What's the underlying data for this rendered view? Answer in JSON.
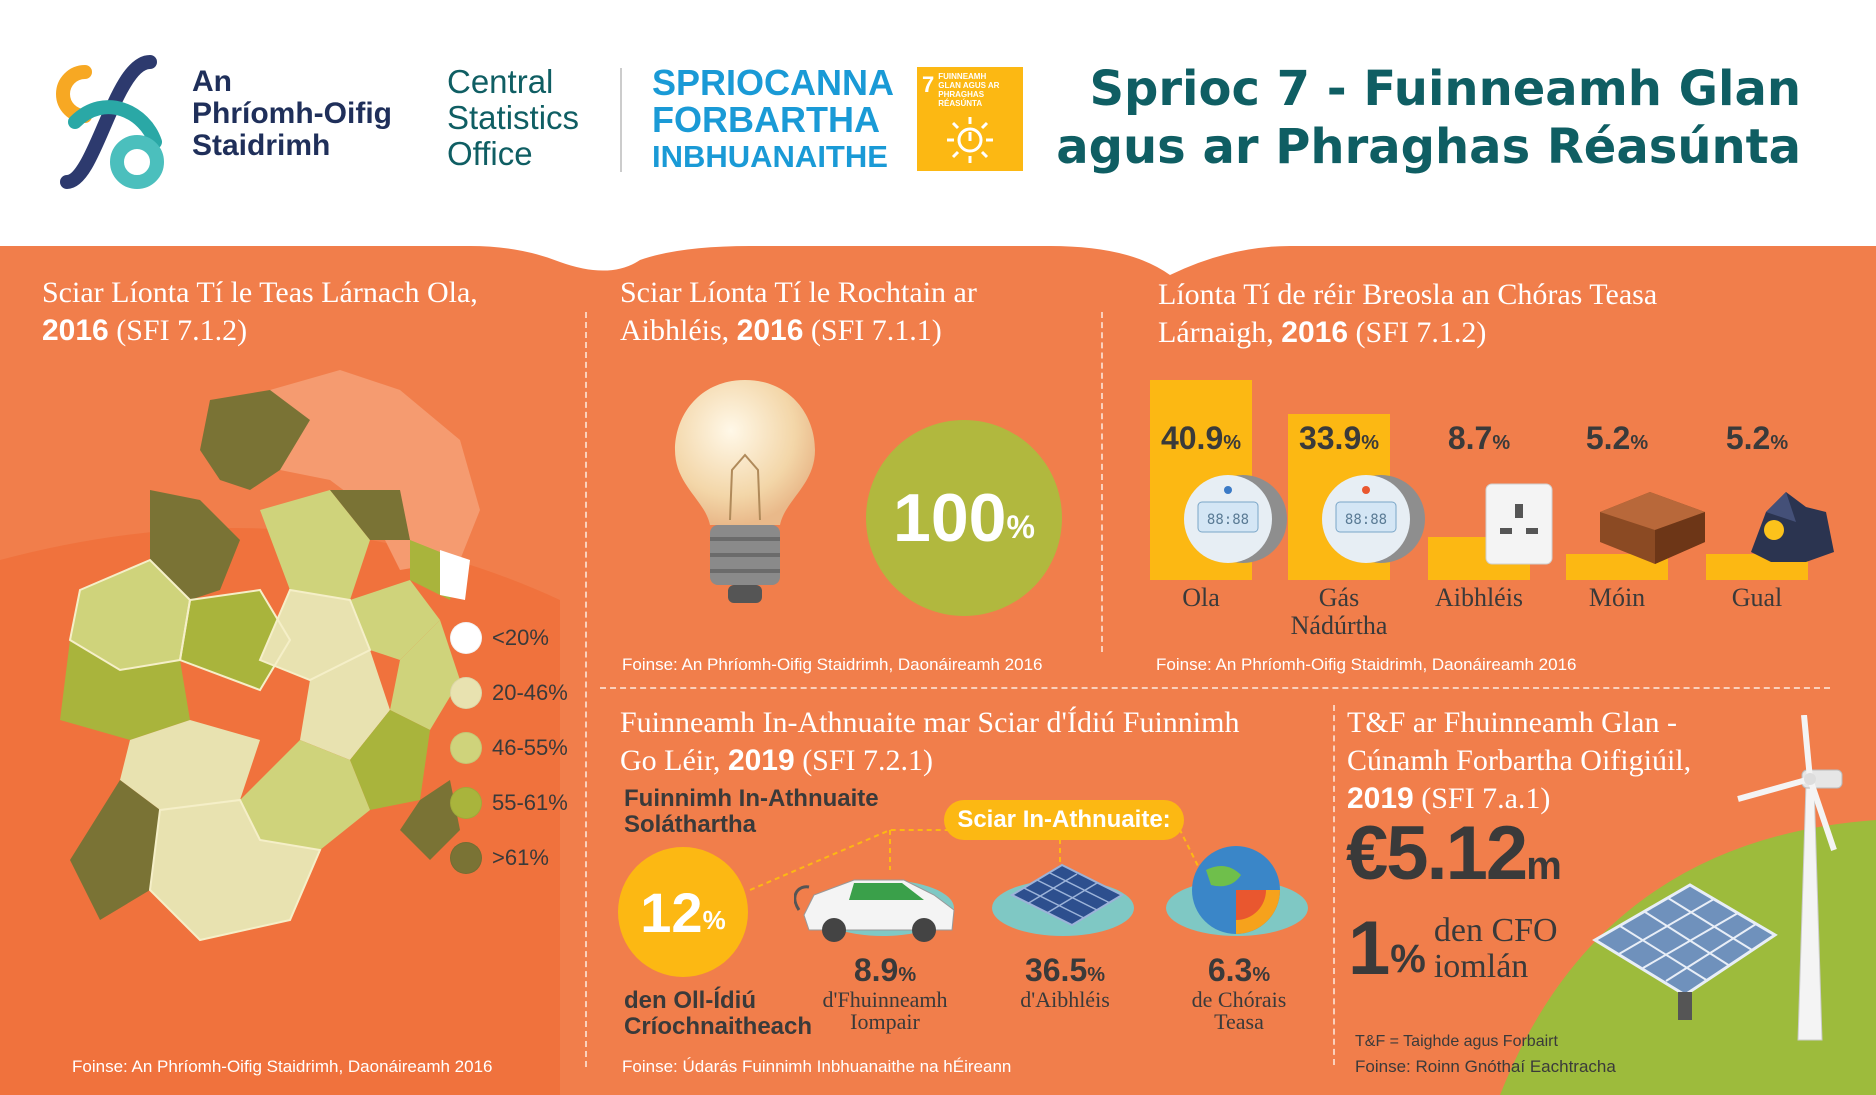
{
  "header": {
    "cso_irish": [
      "An",
      "Phríomh-Oifig",
      "Staidrimh"
    ],
    "cso_english": [
      "Central",
      "Statistics",
      "Office"
    ],
    "sdg_line1": "SPRIOCANNA",
    "sdg_line2": "FORBARTHA",
    "sdg_line3": "INBHUANAITHE",
    "goal_number": "7",
    "goal_text": "FUINNEAMH GLAN AGUS AR PHRAGHAS RÉASÚNTA",
    "title_line1": "Sprioc 7 - Fuinneamh Glan",
    "title_line2": "agus ar Phraghas Réasúnta"
  },
  "panel_map": {
    "title_pre": "Sciar Líonta Tí le Teas Lárnach Ola, ",
    "title_year": "2016",
    "title_post": "  (SFI 7.1.2)",
    "legend": [
      {
        "label": "<20%",
        "color": "#ffffff"
      },
      {
        "label": "20-46%",
        "color": "#e8e2b0"
      },
      {
        "label": "46-55%",
        "color": "#cfd37b"
      },
      {
        "label": "55-61%",
        "color": "#a9b43c"
      },
      {
        "label": ">61%",
        "color": "#7a7335"
      }
    ],
    "source": "Foinse: An Phríomh-Oifig Staidrimh, Daonáireamh 2016"
  },
  "panel_electricity": {
    "title_pre": "Sciar Líonta Tí le Rochtain ar Aibhléis, ",
    "title_year": "2016",
    "title_post": " (SFI 7.1.1)",
    "value": "100",
    "unit": "%",
    "source": "Foinse: An Phríomh-Oifig Staidrimh, Daonáireamh 2016"
  },
  "panel_fuel": {
    "title_pre": "Líonta Tí de réir Breosla an Chóras Teasa Lárnaigh, ",
    "title_year": "2016",
    "title_post": " (SFI 7.1.2)",
    "bars": [
      {
        "value": "40.9",
        "unit": "%",
        "label": "Ola",
        "share": 40.9
      },
      {
        "value": "33.9",
        "unit": "%",
        "label": "Gás Nádúrtha",
        "share": 33.9
      },
      {
        "value": "8.7",
        "unit": "%",
        "label": "Aibhléis",
        "share": 8.7
      },
      {
        "value": "5.2",
        "unit": "%",
        "label": "Móin",
        "share": 5.2
      },
      {
        "value": "5.2",
        "unit": "%",
        "label": "Gual",
        "share": 5.2
      }
    ],
    "source": "Foinse: An Phríomh-Oifig Staidrimh, Daonáireamh 2016"
  },
  "panel_renewable": {
    "title_pre": "Fuinneamh In-Athnuaite mar Sciar d'Ídiú Fuinnimh Go Léir, ",
    "title_year": "2019",
    "title_post": " (SFI 7.2.1)",
    "supplied_label": "Fuinnimh In-Athnuaite Soláthartha",
    "main_value": "12",
    "main_unit": "%",
    "main_caption": "den Oll-Ídiú Críochnaitheach",
    "share_label": "Sciar In-Athnuaite:",
    "items": [
      {
        "value": "8.9",
        "unit": "%",
        "caption": "d'Fhuinneamh Iompair"
      },
      {
        "value": "36.5",
        "unit": "%",
        "caption": "d'Aibhléis"
      },
      {
        "value": "6.3",
        "unit": "%",
        "caption": "de Chórais Teasa"
      }
    ],
    "source": "Foinse: Údarás Fuinnimh Inbhuanaithe na hÉireann"
  },
  "panel_rd": {
    "title_line1": "T&F ar Fhuinneamh Glan -",
    "title_line2": "Cúnamh Forbartha Oifigiúil,",
    "title_year": "2019",
    "title_post": " (SFI 7.a.1)",
    "amount": "€5.12",
    "amount_unit": "m",
    "pct_value": "1",
    "pct_unit": "%",
    "pct_caption_1": "den CFO",
    "pct_caption_2": "iomlán",
    "footnote": "T&F = Taighde agus Forbairt",
    "source": "Foinse: Roinn Gnóthaí Eachtracha"
  }
}
